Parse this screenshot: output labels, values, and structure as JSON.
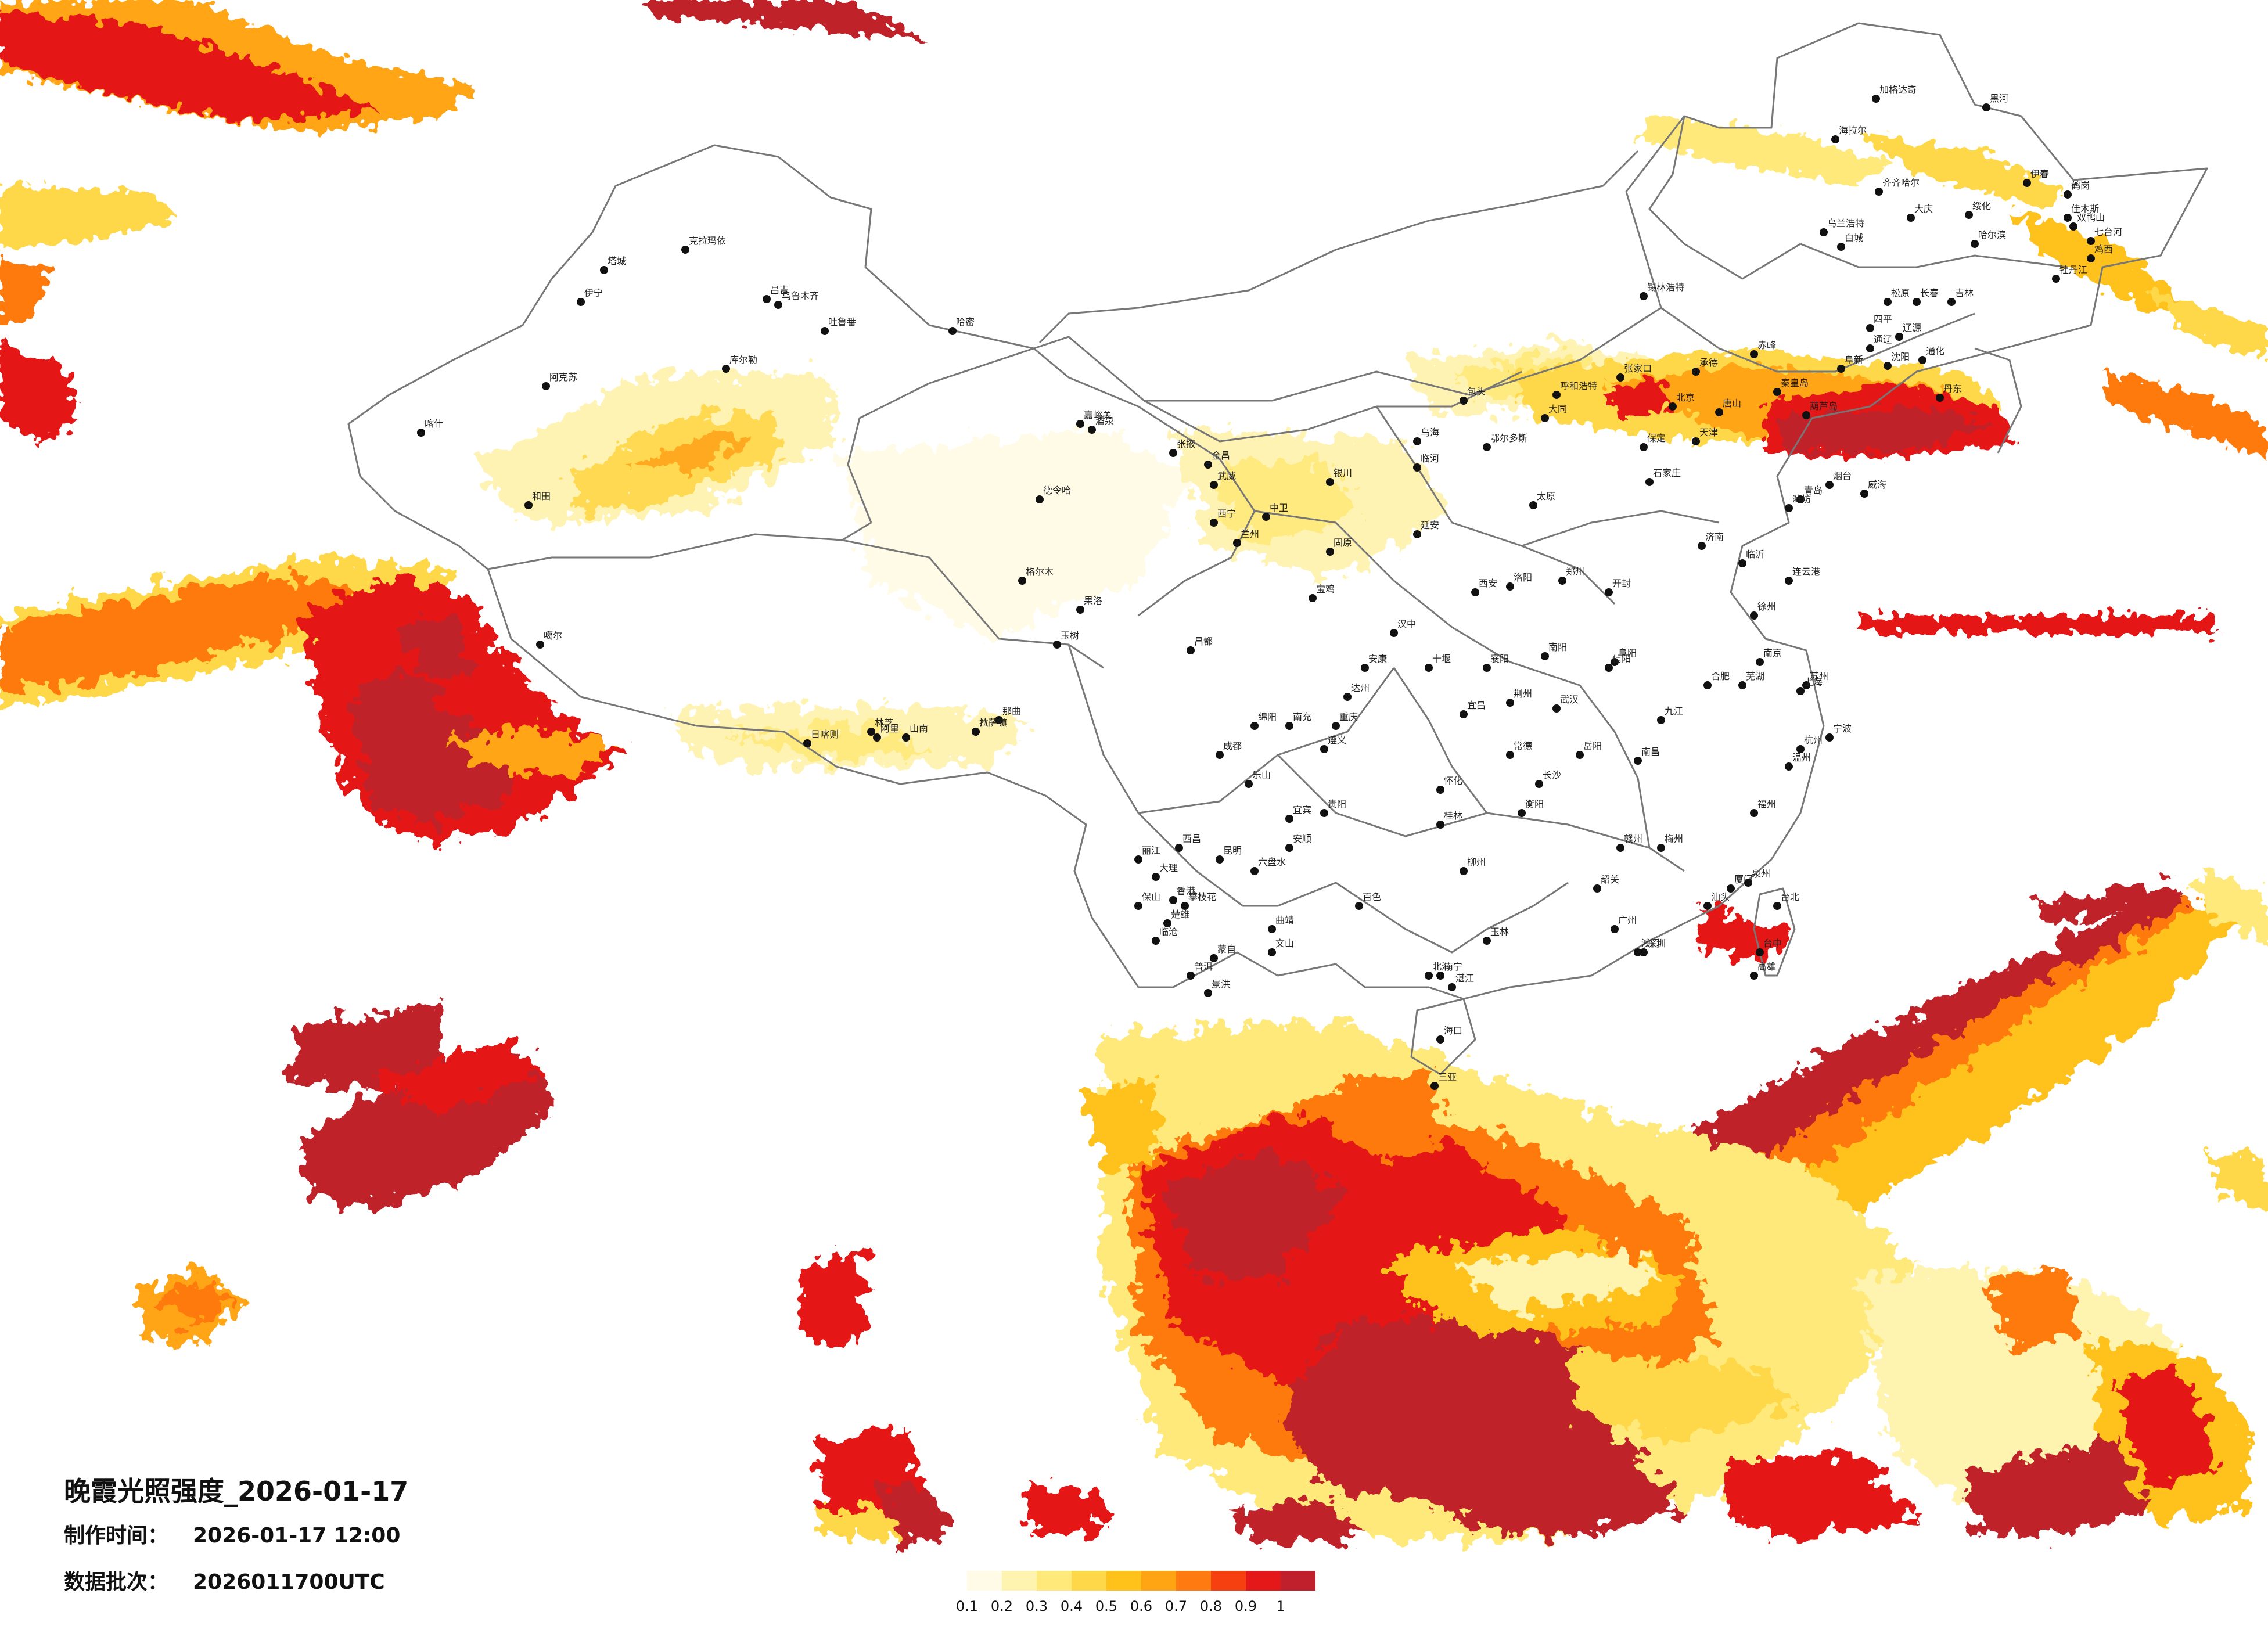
{
  "title": "晚霞光照强度_2026-01-17",
  "made": {
    "label": "制作时间：",
    "value": "2026-01-17 12:00"
  },
  "batch": {
    "label": "数据批次：",
    "value": "2026011700UTC"
  },
  "legend": {
    "colors": [
      "#fffbe6",
      "#fff3b0",
      "#ffe97a",
      "#ffd84a",
      "#ffc21a",
      "#ffa514",
      "#ff7a10",
      "#f74010",
      "#e41818",
      "#c0202b"
    ],
    "ticks": [
      "0.1",
      "0.2",
      "0.3",
      "0.4",
      "0.5",
      "0.6",
      "0.7",
      "0.8",
      "0.9",
      "1"
    ]
  },
  "cities": [
    "塔城",
    "克拉玛依",
    "伊宁",
    "昌吉",
    "乌鲁木齐",
    "吐鲁番",
    "哈密",
    "库尔勒",
    "阿克苏",
    "喀什",
    "和田",
    "海拉尔",
    "加格达奇",
    "黑河",
    "齐齐哈尔",
    "大庆",
    "绥化",
    "伊春",
    "鹤岗",
    "佳木斯",
    "双鸭山",
    "七台河",
    "鸡西",
    "牡丹江",
    "哈尔滨",
    "乌兰浩特",
    "白城",
    "松原",
    "长春",
    "吉林",
    "通化",
    "四平",
    "辽源",
    "锡林浩特",
    "赤峰",
    "通辽",
    "沈阳",
    "阜新",
    "葫芦岛",
    "丹东",
    "呼和浩特",
    "包头",
    "乌海",
    "鄂尔多斯",
    "临河",
    "嘉峪关",
    "酒泉",
    "张掖",
    "金昌",
    "武威",
    "西宁",
    "兰州",
    "银川",
    "中卫",
    "固原",
    "德令哈",
    "格尔木",
    "玉树",
    "果洛",
    "拉萨",
    "日喀则",
    "林芝",
    "山南",
    "那曲",
    "昌都",
    "噶尔",
    "阿里",
    "八一镇",
    "太原",
    "大同",
    "石家庄",
    "保定",
    "北京",
    "天津",
    "唐山",
    "张家口",
    "承德",
    "秦皇岛",
    "济南",
    "青岛",
    "烟台",
    "威海",
    "潍坊",
    "临沂",
    "郑州",
    "洛阳",
    "开封",
    "南阳",
    "信阳",
    "西安",
    "延安",
    "宝鸡",
    "汉中",
    "安康",
    "武汉",
    "宜昌",
    "襄阳",
    "荆州",
    "十堰",
    "长沙",
    "岳阳",
    "常德",
    "衡阳",
    "怀化",
    "南昌",
    "九江",
    "赣州",
    "合肥",
    "芜湖",
    "阜阳",
    "南京",
    "苏州",
    "徐州",
    "连云港",
    "上海",
    "杭州",
    "宁波",
    "温州",
    "福州",
    "厦门",
    "泉州",
    "台北",
    "台中",
    "高雄",
    "广州",
    "深圳",
    "汕头",
    "湛江",
    "梅州",
    "韶关",
    "南宁",
    "柳州",
    "桂林",
    "百色",
    "玉林",
    "北海",
    "海口",
    "三亚",
    "成都",
    "重庆",
    "绵阳",
    "南充",
    "达州",
    "乐山",
    "宜宾",
    "西昌",
    "攀枝花",
    "贵阳",
    "遵义",
    "安顺",
    "六盘水",
    "昆明",
    "大理",
    "丽江",
    "保山",
    "临沧",
    "普洱",
    "景洪",
    "蒙自",
    "文山",
    "曲靖",
    "楚雄",
    "香港",
    "澳门"
  ]
}
